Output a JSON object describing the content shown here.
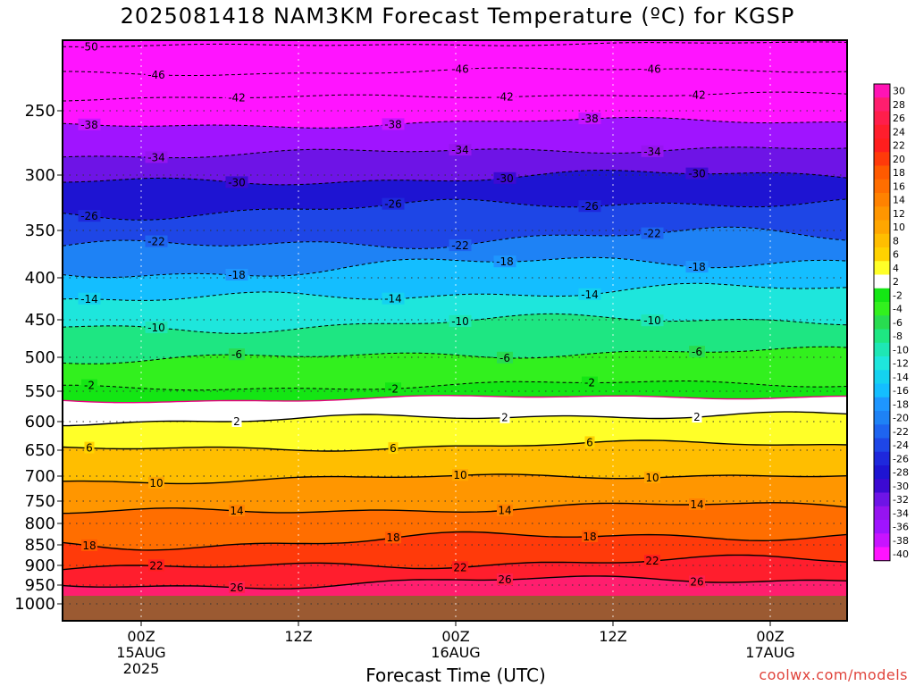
{
  "chart_data": {
    "type": "heatmap",
    "title": "2025081418 NAM3KM Forecast Temperature (ºC) for KGSP",
    "xlabel": "Forecast Time (UTC)",
    "credit": "coolwx.com/models",
    "y_axis": {
      "label": "",
      "ticks": [
        "250",
        "300",
        "350",
        "400",
        "450",
        "500",
        "550",
        "600",
        "650",
        "700",
        "750",
        "800",
        "850",
        "900",
        "950",
        "1000"
      ],
      "ylim": [
        1000,
        200
      ],
      "scale": "pressure (hPa)"
    },
    "x_axis": {
      "ticks": [
        {
          "lines": [
            "00Z",
            "15AUG",
            "2025"
          ]
        },
        {
          "lines": [
            "12Z"
          ]
        },
        {
          "lines": [
            "00Z",
            "16AUG"
          ]
        },
        {
          "lines": [
            "12Z"
          ]
        },
        {
          "lines": [
            "00Z",
            "17AUG"
          ]
        }
      ]
    },
    "grid": true,
    "colorbar": {
      "position": "right",
      "labels": [
        "30",
        "28",
        "26",
        "24",
        "22",
        "20",
        "18",
        "16",
        "14",
        "12",
        "10",
        "8",
        "6",
        "4",
        "2",
        "-2",
        "-4",
        "-6",
        "-8",
        "-10",
        "-12",
        "-14",
        "-16",
        "-18",
        "-20",
        "-22",
        "-24",
        "-26",
        "-28",
        "-30",
        "-32",
        "-34",
        "-36",
        "-38",
        "-40"
      ],
      "colors": [
        "#ff14b4",
        "#ff1e6e",
        "#ff1e4b",
        "#ff1e2d",
        "#ff1e1e",
        "#ff3a0a",
        "#ff5a00",
        "#ff6e00",
        "#ff8200",
        "#ff9600",
        "#ffa600",
        "#ffbe00",
        "#ffd200",
        "#ffff28",
        "#ffffff",
        "#14e614",
        "#32f01e",
        "#28dc50",
        "#1ee682",
        "#1ee6b4",
        "#1ee6dc",
        "#14d2f0",
        "#14beff",
        "#1e96ff",
        "#1e82f5",
        "#1e64f0",
        "#1e46e6",
        "#1e28dc",
        "#1e14d2",
        "#3c0ad2",
        "#6e14e6",
        "#9614f0",
        "#a014ff",
        "#c814ff",
        "#ff14ff"
      ]
    },
    "contours": [
      {
        "value": -50,
        "label": "-50"
      },
      {
        "value": -46,
        "label": "-46"
      },
      {
        "value": -42,
        "label": "-42"
      },
      {
        "value": -38,
        "label": "-38"
      },
      {
        "value": -34,
        "label": "-34"
      },
      {
        "value": -30,
        "label": "-30"
      },
      {
        "value": -26,
        "label": "-26"
      },
      {
        "value": -22,
        "label": "-22"
      },
      {
        "value": -18,
        "label": "-18"
      },
      {
        "value": -14,
        "label": "-14"
      },
      {
        "value": -10,
        "label": "-10"
      },
      {
        "value": -6,
        "label": "-6"
      },
      {
        "value": -2,
        "label": "-2"
      },
      {
        "value": 0,
        "label": ""
      },
      {
        "value": 2,
        "label": "2"
      },
      {
        "value": 6,
        "label": "6"
      },
      {
        "value": 10,
        "label": "10"
      },
      {
        "value": 14,
        "label": "14"
      },
      {
        "value": 18,
        "label": "18"
      },
      {
        "value": 22,
        "label": "22"
      },
      {
        "value": 26,
        "label": "26"
      }
    ]
  }
}
